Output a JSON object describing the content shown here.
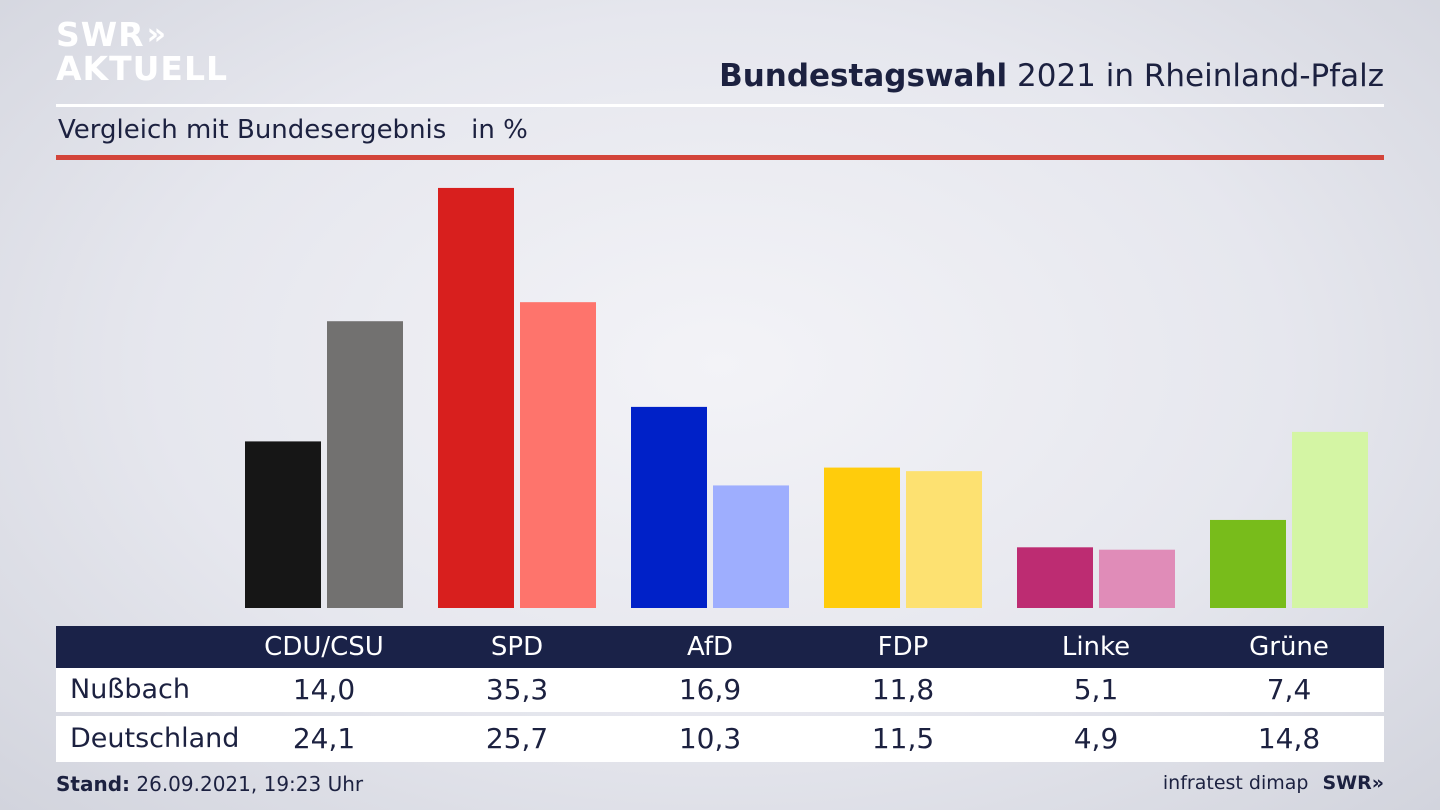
{
  "brand": {
    "logo_line1": "SWR",
    "logo_chevrons": "»",
    "logo_line2": "AKTUELL"
  },
  "header": {
    "title_bold": "Bundestagswahl",
    "title_rest": " 2021 in Rheinland-Pfalz",
    "subtitle": "Vergleich mit Bundesergebnis   in %"
  },
  "chart_data": {
    "type": "bar",
    "title": "Bundestagswahl 2021 in Rheinland-Pfalz",
    "subtitle": "Vergleich mit Bundesergebnis   in %",
    "categories": [
      "CDU/CSU",
      "SPD",
      "AfD",
      "FDP",
      "Linke",
      "Grüne"
    ],
    "series": [
      {
        "name": "Nußbach",
        "values": [
          14.0,
          35.3,
          16.9,
          11.8,
          5.1,
          7.4
        ]
      },
      {
        "name": "Deutschland",
        "values": [
          24.1,
          25.7,
          10.3,
          11.5,
          4.9,
          14.8
        ]
      }
    ],
    "colors": {
      "Nußbach": [
        "#161616",
        "#d81f1e",
        "#0021c8",
        "#ffcc0c",
        "#bd2c72",
        "#78bc1b"
      ],
      "Deutschland": [
        "#727170",
        "#fe746c",
        "#9eaefe",
        "#fde171",
        "#e08cb8",
        "#d4f5a4"
      ]
    },
    "ylim": [
      0,
      36
    ],
    "grid": false
  },
  "table": {
    "rows": [
      {
        "label": "Nußbach",
        "values": [
          "14,0",
          "35,3",
          "16,9",
          "11,8",
          "5,1",
          "7,4"
        ]
      },
      {
        "label": "Deutschland",
        "values": [
          "24,1",
          "25,7",
          "10,3",
          "11,5",
          "4,9",
          "14,8"
        ]
      }
    ]
  },
  "footer": {
    "stand_label": "Stand:",
    "stand_value": " 26.09.2021, 19:23 Uhr",
    "source": "infratest dimap",
    "swr": "SWR»"
  }
}
